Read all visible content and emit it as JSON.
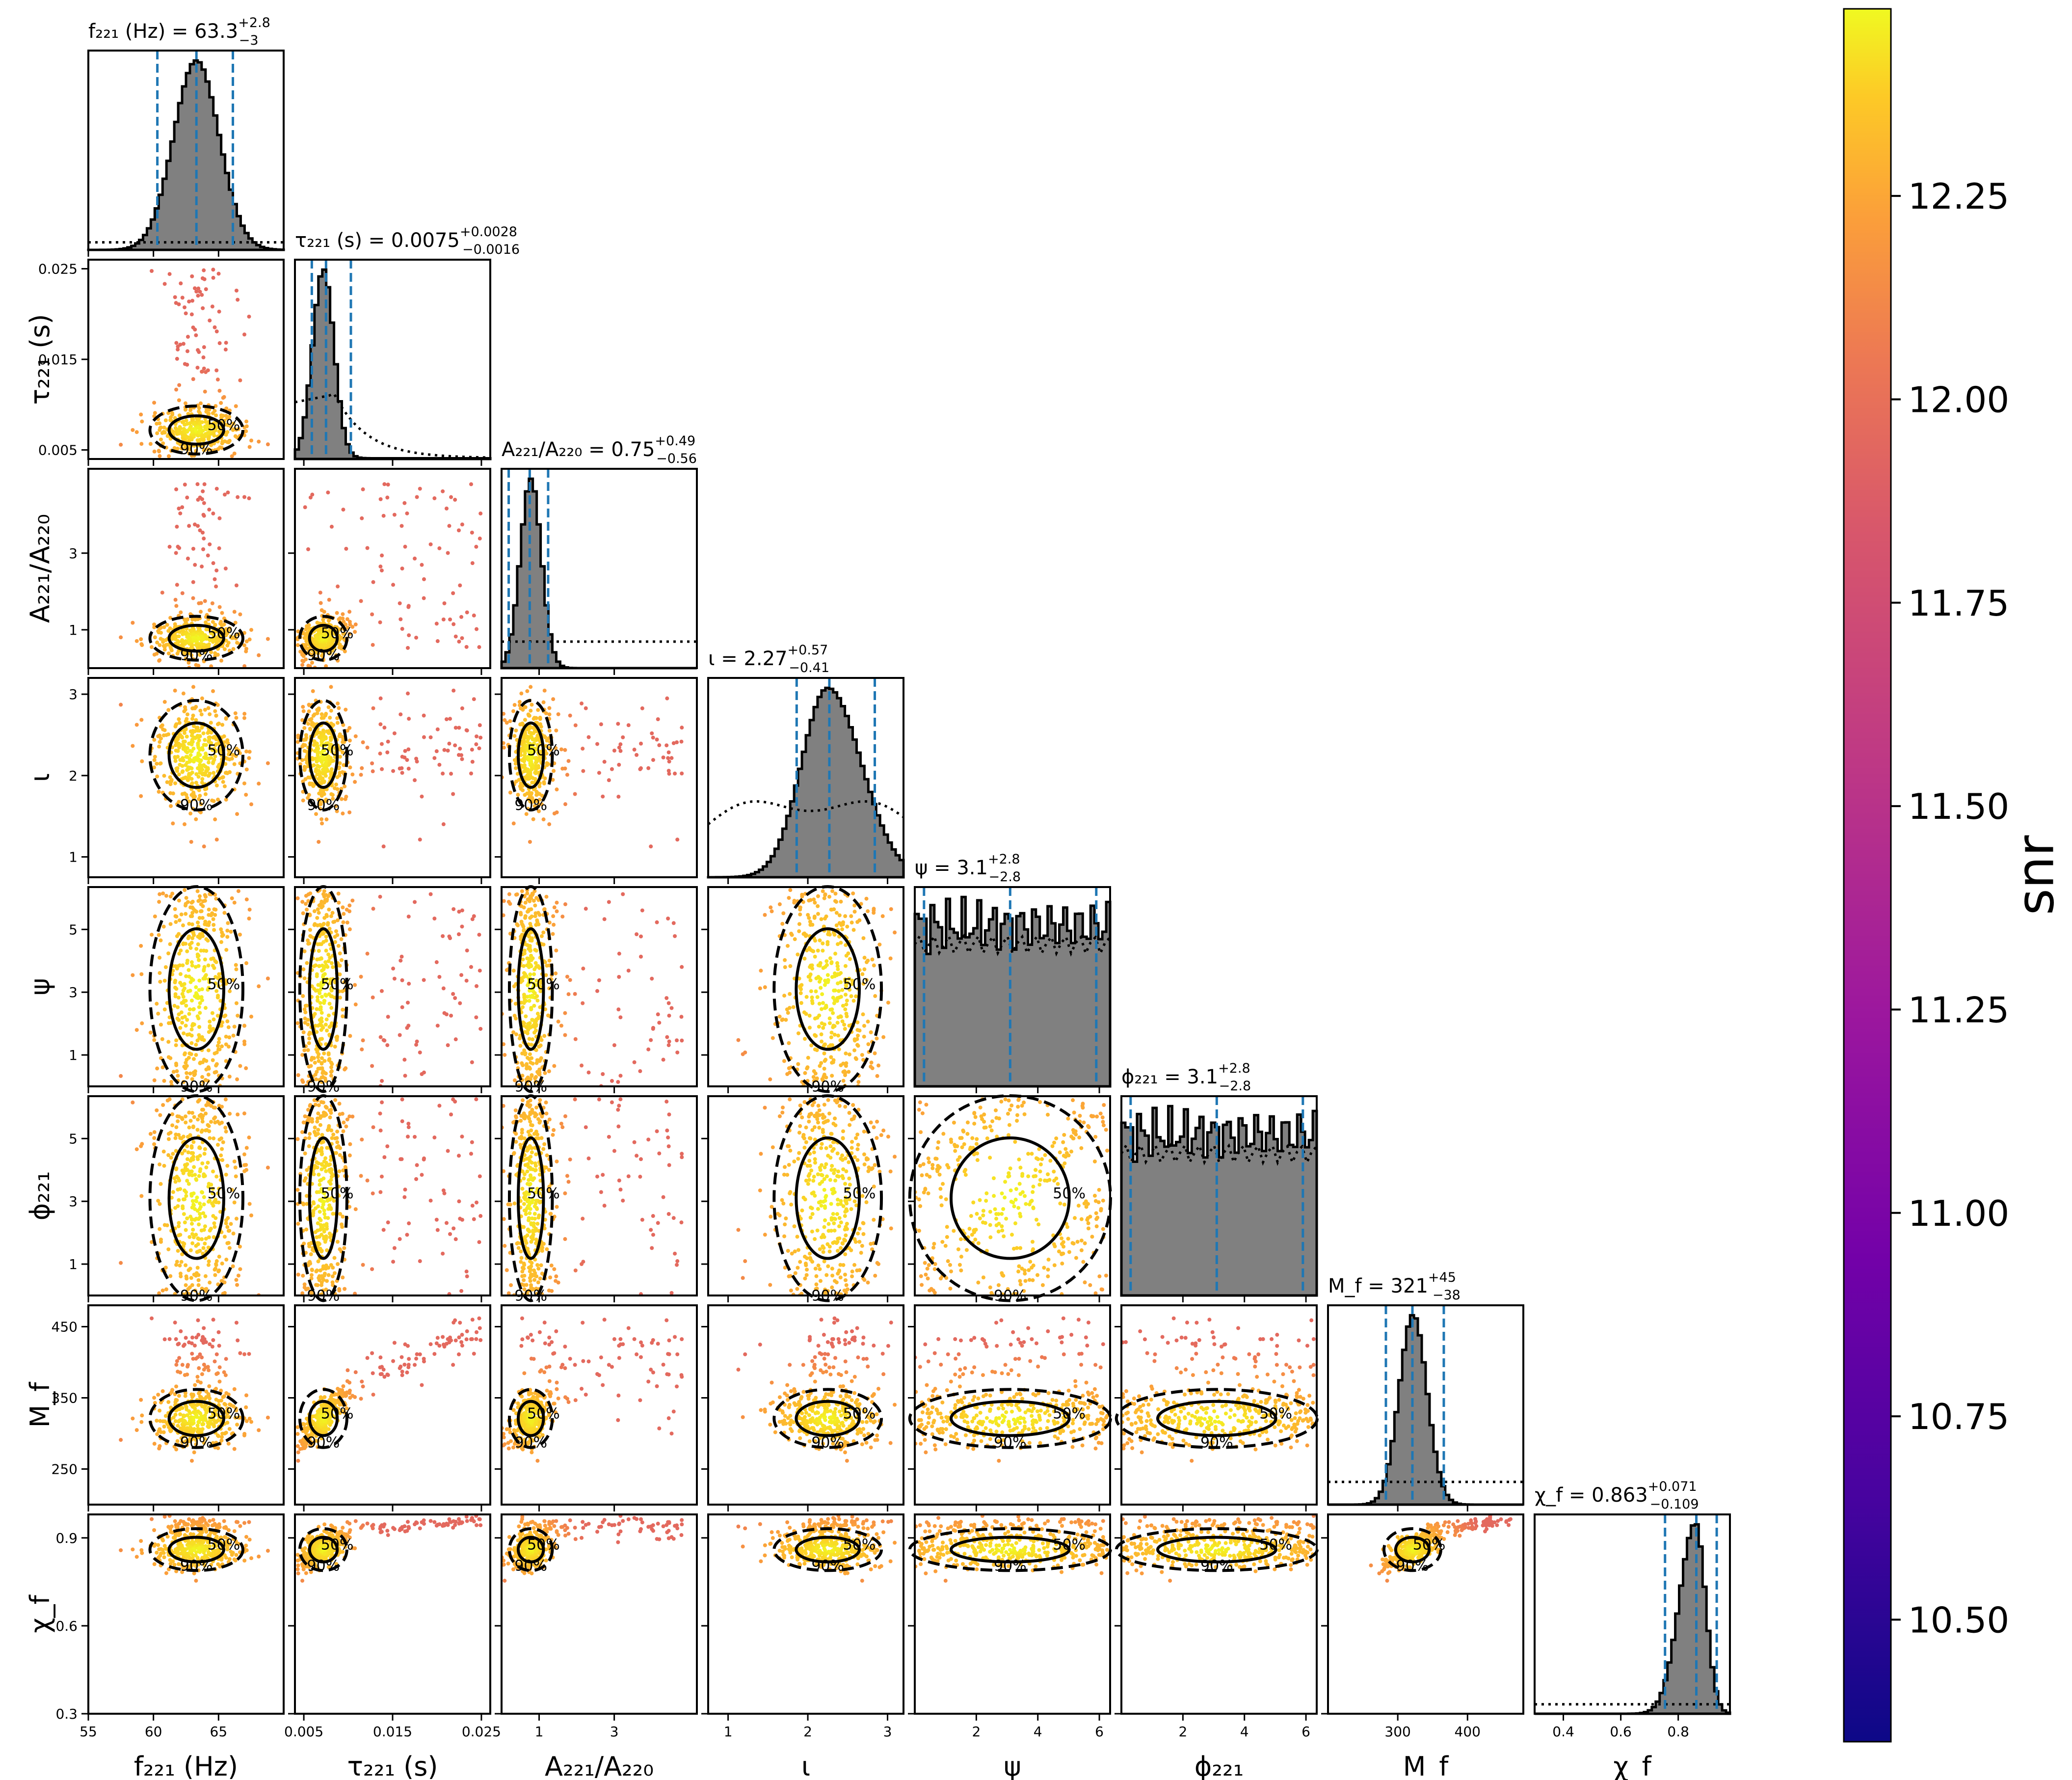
{
  "chart_data": {
    "type": "scatter",
    "plot_kind": "corner plot with 1-D marginal histograms, 2-D scatter colored by snr, 50%/90% credible contours",
    "parameters": [
      {
        "key": "f221",
        "label": "f₂₂₁ (Hz)",
        "title": "f₂₂₁ (Hz) = 63.3",
        "median": 63.3,
        "plus": "+2.8",
        "minus": "−3",
        "range": [
          55,
          70
        ],
        "ticks": [
          55,
          60,
          65
        ],
        "quantiles": [
          60.3,
          63.3,
          66.1
        ],
        "hist": {
          "mean": 63.3,
          "sd": 1.75,
          "prior": "flat",
          "prior_level": 0.04
        }
      },
      {
        "key": "tau221",
        "label": "τ₂₂₁ (s)",
        "title": "τ₂₂₁ (s) = 0.0075",
        "median": 0.0075,
        "plus": "+0.0028",
        "minus": "−0.0016",
        "range": [
          0.004,
          0.026
        ],
        "ticks": [
          0.005,
          0.015,
          0.025
        ],
        "tick_labels": [
          "0.005",
          "0.015",
          "0.025"
        ],
        "quantiles": [
          0.0059,
          0.0075,
          0.0103
        ],
        "hist": {
          "mean": 0.0072,
          "sd": 0.0012,
          "tail": 0.004,
          "prior": "rise_then_fall",
          "prior_level": 0.3
        }
      },
      {
        "key": "ratio",
        "label": "A₂₂₁/A₂₂₀",
        "title": "A₂₂₁/A₂₂₀ = 0.75",
        "median": 0.75,
        "plus": "+0.49",
        "minus": "−0.56",
        "range": [
          0,
          5.2
        ],
        "ticks": [
          1,
          3
        ],
        "quantiles": [
          0.19,
          0.75,
          1.24
        ],
        "hist": {
          "mean": 0.78,
          "sd": 0.28,
          "prior": "flat",
          "prior_level": 0.14
        }
      },
      {
        "key": "iota",
        "label": "ι",
        "title": "ι = 2.27",
        "median": 2.27,
        "plus": "+0.57",
        "minus": "−0.41",
        "range": [
          0.75,
          3.2
        ],
        "ticks": [
          1,
          2,
          3
        ],
        "quantiles": [
          1.86,
          2.27,
          2.84
        ],
        "hist": {
          "mean": 2.25,
          "sd": 0.33,
          "skew": 0.7,
          "prior": "sine",
          "prior_level": 0.4
        }
      },
      {
        "key": "psi",
        "label": "ψ",
        "title": "ψ = 3.1",
        "median": 3.1,
        "plus": "+2.8",
        "minus": "−2.8",
        "range": [
          0,
          6.35
        ],
        "ticks": [
          2,
          4,
          6
        ],
        "quantiles": [
          0.3,
          3.1,
          5.9
        ],
        "hist": {
          "prior": "flat",
          "uniform": true,
          "level": 0.7,
          "prior_level": 0.75
        }
      },
      {
        "key": "phi221",
        "label": "ϕ₂₂₁",
        "title": "ϕ₂₂₁ = 3.1",
        "median": 3.1,
        "plus": "+2.8",
        "minus": "−2.8",
        "range": [
          0,
          6.35
        ],
        "ticks": [
          2,
          4,
          6
        ],
        "quantiles": [
          0.3,
          3.1,
          5.9
        ],
        "hist": {
          "prior": "flat",
          "uniform": true,
          "level": 0.72,
          "prior_level": 0.75
        }
      },
      {
        "key": "Mf",
        "label": "M_f",
        "title": "M_f = 321",
        "median": 321,
        "plus": "+45",
        "minus": "−38",
        "range": [
          200,
          480
        ],
        "ticks": [
          300,
          400
        ],
        "quantiles": [
          283,
          321,
          366
        ],
        "hist": {
          "mean": 322,
          "sd": 20,
          "prior": "flat",
          "prior_level": 0.12
        }
      },
      {
        "key": "chif",
        "label": "χ_f",
        "title": "χ_f = 0.863",
        "median": 0.863,
        "plus": "+0.071",
        "minus": "−0.109",
        "range": [
          0.3,
          0.98
        ],
        "ticks": [
          0.4,
          0.6,
          0.8
        ],
        "quantiles": [
          0.754,
          0.863,
          0.934
        ],
        "hist": {
          "mean": 0.86,
          "sd": 0.035,
          "skew": -1.5,
          "prior": "flat",
          "prior_level": 0.05
        }
      }
    ],
    "row_ticks": {
      "tau221": {
        "ticks": [
          0.005,
          0.015,
          0.025
        ],
        "labels": [
          "0.005",
          "0.015",
          "0.025"
        ]
      },
      "ratio": {
        "ticks": [
          1,
          3
        ],
        "labels": [
          "1",
          "3"
        ]
      },
      "iota": {
        "ticks": [
          1,
          2,
          3
        ],
        "labels": [
          "1",
          "2",
          "3"
        ]
      },
      "psi": {
        "ticks": [
          1,
          3,
          5
        ],
        "labels": [
          "1",
          "3",
          "5"
        ]
      },
      "phi221": {
        "ticks": [
          1,
          3,
          5
        ],
        "labels": [
          "1",
          "3",
          "5"
        ]
      },
      "Mf": {
        "ticks": [
          250,
          350,
          450
        ],
        "labels": [
          "250",
          "350",
          "450"
        ]
      },
      "chif": {
        "ticks": [
          0.3,
          0.6,
          0.9
        ],
        "labels": [
          "0.3",
          "0.6",
          "0.9"
        ]
      }
    },
    "contour_labels": [
      "50%",
      "90%"
    ],
    "colorbar": {
      "label": "snr",
      "min": 10.35,
      "max": 12.48,
      "ticks": [
        10.5,
        10.75,
        11.0,
        11.25,
        11.5,
        11.75,
        12.0,
        12.25
      ],
      "tick_labels": [
        "10.50",
        "10.75",
        "11.00",
        "11.25",
        "11.50",
        "11.75",
        "12.00",
        "12.25"
      ],
      "colormap": "plasma"
    },
    "colors": {
      "quantile_line": "#1f77b4",
      "hist_fill": "#808080",
      "contour": "#000000"
    }
  }
}
